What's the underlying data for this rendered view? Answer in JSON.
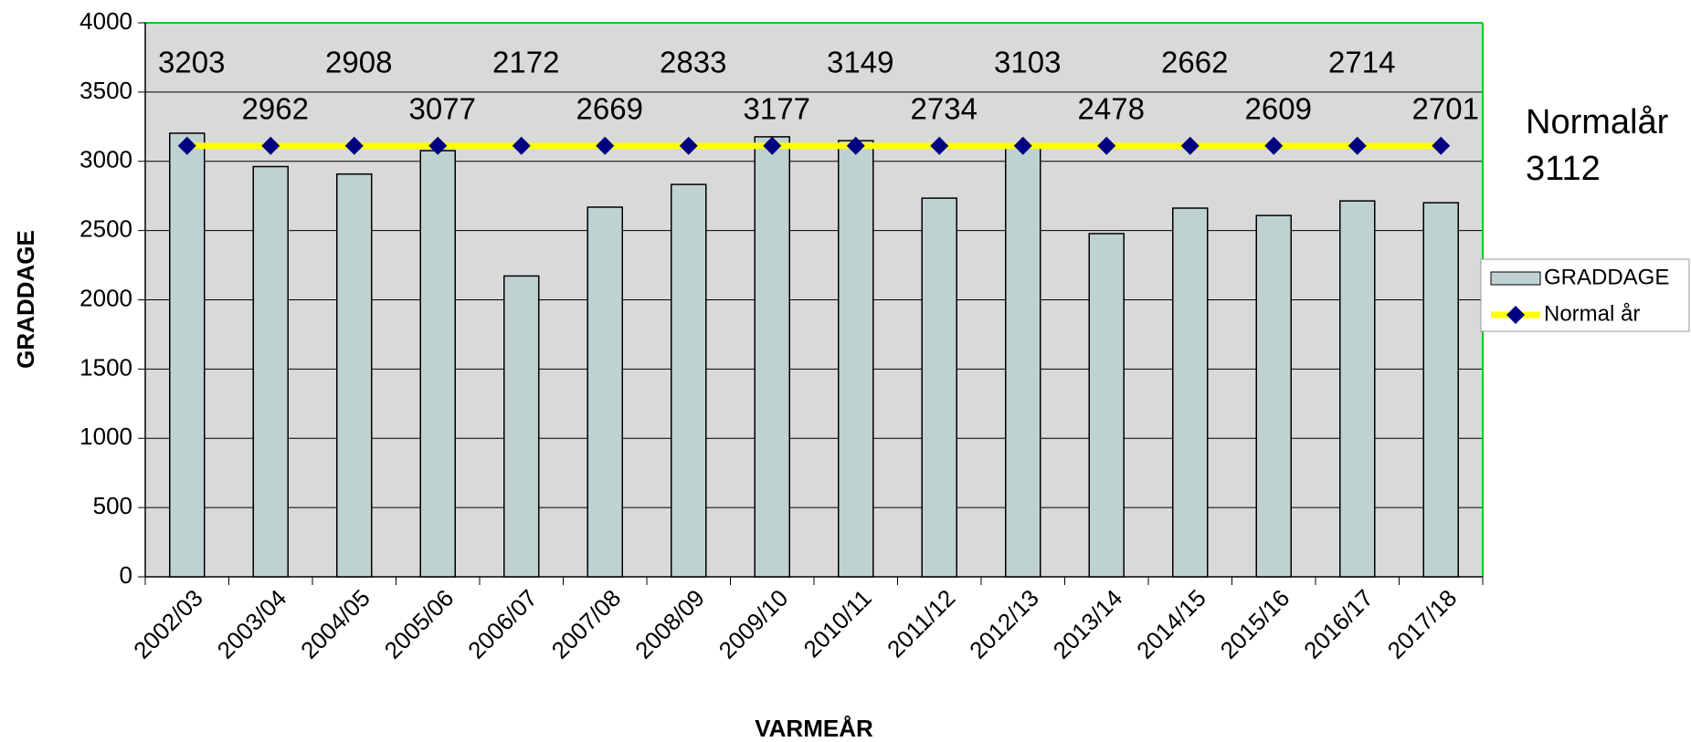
{
  "chart_data": {
    "type": "bar",
    "categories": [
      "2002/03",
      "2003/04",
      "2004/05",
      "2005/06",
      "2006/07",
      "2007/08",
      "2008/09",
      "2009/10",
      "2010/11",
      "2011/12",
      "2012/13",
      "2013/14",
      "2014/15",
      "2015/16",
      "2016/17",
      "2017/18"
    ],
    "series": [
      {
        "name": "GRADDAGE",
        "type": "bar",
        "color": "#bfd1d1",
        "values": [
          3203,
          2962,
          2908,
          3077,
          2172,
          2669,
          2833,
          3177,
          3149,
          2734,
          3103,
          2478,
          2662,
          2609,
          2714,
          2701
        ]
      },
      {
        "name": "Normal år",
        "type": "line",
        "color": "#ffff00",
        "marker_color": "#000080",
        "values": [
          3112,
          3112,
          3112,
          3112,
          3112,
          3112,
          3112,
          3112,
          3112,
          3112,
          3112,
          3112,
          3112,
          3112,
          3112,
          3112
        ]
      }
    ],
    "x_label": "VARMEÅR",
    "y_label": "GRADDAGE",
    "annotation_lines": [
      "Normalår",
      "3112"
    ],
    "ylim": [
      0,
      4000
    ],
    "yticks": [
      0,
      500,
      1000,
      1500,
      2000,
      2500,
      3000,
      3500,
      4000
    ],
    "grid": true,
    "legend": "right",
    "plot_background": "#d9d9d9",
    "plot_border": "#00cc00"
  }
}
